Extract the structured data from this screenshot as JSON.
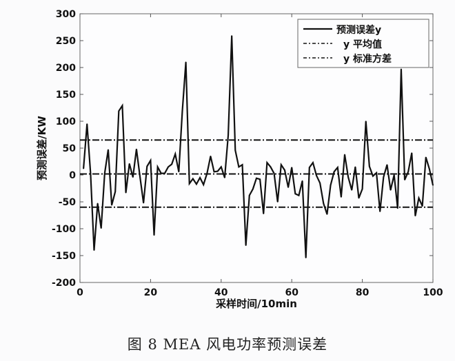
{
  "caption": "图 8   MEA 风电功率预测误差",
  "chart_data": {
    "type": "line",
    "title": "",
    "xlabel": "采样时间/10min",
    "ylabel": "预测误差/KW",
    "xlim": [
      0,
      100
    ],
    "ylim": [
      -200,
      300
    ],
    "xticks": [
      0,
      20,
      40,
      60,
      80,
      100
    ],
    "yticks": [
      -200,
      -150,
      -100,
      -50,
      0,
      50,
      100,
      150,
      200,
      250,
      300
    ],
    "grid": false,
    "legend_position": "top-right",
    "series": [
      {
        "name": "预测误差y",
        "style": "solid",
        "color": "#111111",
        "x": [
          1,
          2,
          3,
          4,
          5,
          6,
          7,
          8,
          9,
          10,
          11,
          12,
          13,
          14,
          15,
          16,
          17,
          18,
          19,
          20,
          21,
          22,
          23,
          24,
          25,
          26,
          27,
          28,
          29,
          30,
          31,
          32,
          33,
          34,
          35,
          36,
          37,
          38,
          39,
          40,
          41,
          42,
          43,
          44,
          45,
          46,
          47,
          48,
          49,
          50,
          51,
          52,
          53,
          54,
          55,
          56,
          57,
          58,
          59,
          60,
          61,
          62,
          63,
          64,
          65,
          66,
          67,
          68,
          69,
          70,
          71,
          72,
          73,
          74,
          75,
          76,
          77,
          78,
          79,
          80,
          81,
          82,
          83,
          84,
          85,
          86,
          87,
          88,
          89,
          90,
          91,
          92,
          93,
          94,
          95,
          96,
          97,
          98,
          99,
          100
        ],
        "y": [
          12,
          95,
          3,
          -140,
          -53,
          -99,
          3,
          47,
          -56,
          -31,
          119,
          129,
          -33,
          21,
          -4,
          48,
          -3,
          -52,
          16,
          27,
          -112,
          15,
          3,
          3,
          15,
          20,
          39,
          6,
          119,
          210,
          -16,
          -7,
          -17,
          -5,
          -18,
          3,
          35,
          6,
          7,
          15,
          -5,
          74,
          259,
          46,
          15,
          19,
          -131,
          -38,
          -26,
          -6,
          -8,
          -72,
          23,
          15,
          3,
          -50,
          19,
          9,
          -23,
          14,
          -35,
          -38,
          -11,
          -154,
          14,
          23,
          -1,
          -15,
          -53,
          -73,
          -19,
          6,
          14,
          -41,
          38,
          -4,
          -28,
          15,
          -43,
          -26,
          100,
          16,
          -2,
          4,
          -68,
          -4,
          19,
          -28,
          0,
          -62,
          197,
          -9,
          6,
          41,
          -76,
          -43,
          -58,
          33,
          11,
          -19
        ]
      },
      {
        "name": "y 平均值",
        "style": "dash-dot",
        "color": "#111111",
        "constant": 2
      },
      {
        "name": "y 标准方差",
        "style": "dash-dot",
        "color": "#111111",
        "constant": [
          65,
          -60
        ]
      }
    ]
  }
}
